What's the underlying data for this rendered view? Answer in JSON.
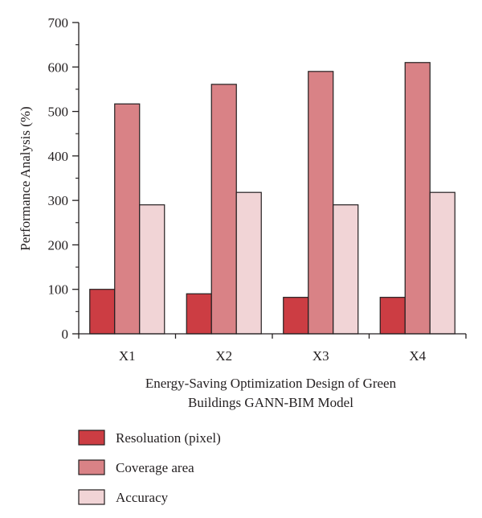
{
  "chart_data": {
    "type": "bar",
    "xlabel_lines": [
      "Energy-Saving Optimization Design of Green",
      "Buildings GANN-BIM Model"
    ],
    "ylabel": "Performance Analysis (%)",
    "categories": [
      "X1",
      "X2",
      "X3",
      "X4"
    ],
    "ylim": [
      0,
      700
    ],
    "yticks": [
      0,
      100,
      200,
      300,
      400,
      500,
      600,
      700
    ],
    "grid": false,
    "legend_position": "bottom-left",
    "series": [
      {
        "name": "Resoluation (pixel)",
        "values": [
          100,
          90,
          82,
          82
        ],
        "color": "#cc3d43"
      },
      {
        "name": "Coverage area",
        "values": [
          517,
          561,
          590,
          610
        ],
        "color": "#d98286"
      },
      {
        "name": "Accuracy",
        "values": [
          290,
          318,
          290,
          318
        ],
        "color": "#f1d4d6"
      }
    ]
  }
}
